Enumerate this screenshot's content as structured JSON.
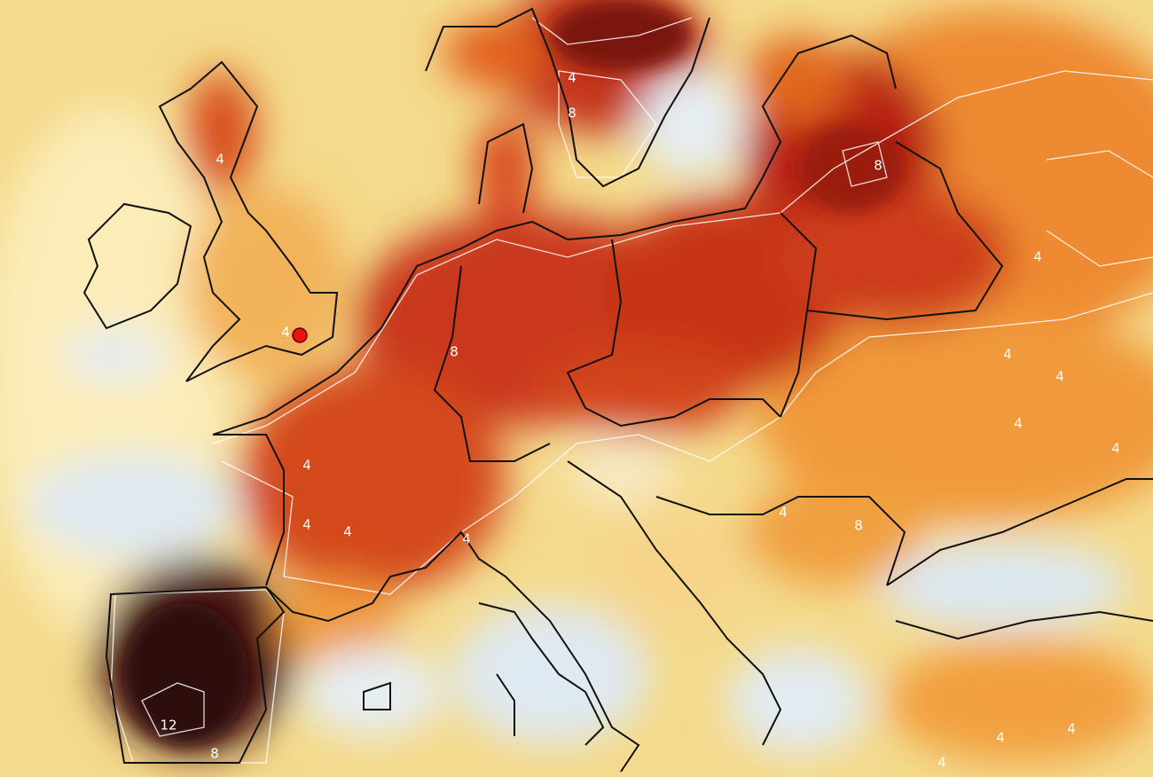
{
  "map": {
    "contour_labels": [
      4,
      8,
      4,
      4,
      8,
      8,
      4,
      4,
      4,
      4,
      4,
      4,
      4,
      4,
      4,
      8,
      12,
      8,
      4,
      4,
      4,
      4
    ]
  }
}
